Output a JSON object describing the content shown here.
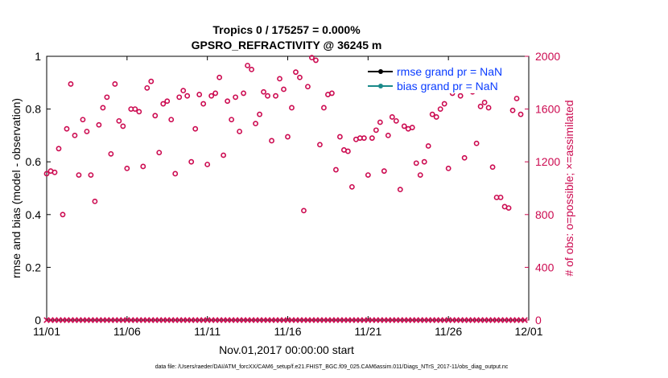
{
  "chart_data": {
    "type": "scatter",
    "title": "Tropics 0 / 175257 = 0.000%",
    "subtitle": "GPSRO_REFRACTIVITY @ 36245 m",
    "xlabel": "Nov.01,2017 00:00:00 start",
    "ylabel": "rmse and bias (model - observation)",
    "y2label": "# of obs: o=possible; ×=assimilated",
    "xlim": [
      0,
      30
    ],
    "ylim": [
      0,
      1
    ],
    "y2lim": [
      0,
      2000
    ],
    "x_tick_labels": [
      {
        "x": 0,
        "label": "11/01"
      },
      {
        "x": 5,
        "label": "11/06"
      },
      {
        "x": 10,
        "label": "11/11"
      },
      {
        "x": 15,
        "label": "11/16"
      },
      {
        "x": 20,
        "label": "11/21"
      },
      {
        "x": 25,
        "label": "11/26"
      },
      {
        "x": 30,
        "label": "12/01"
      }
    ],
    "y_ticks": [
      0,
      0.2,
      0.4,
      0.6,
      0.8,
      1
    ],
    "y_tick_labels": [
      "0",
      "0.2",
      "0.4",
      "0.6",
      "0.8",
      "1"
    ],
    "y2_ticks": [
      0,
      400,
      800,
      1200,
      1600,
      2000
    ],
    "y2_tick_labels": [
      "0",
      "400",
      "800",
      "1200",
      "1600",
      "2000"
    ],
    "legend": {
      "placement": "top-right",
      "entries": [
        {
          "label": "rmse grand pr = NaN",
          "color": "#000000"
        },
        {
          "label": "bias grand pr = NaN",
          "color": "#1a8a8a"
        }
      ]
    },
    "series": [
      {
        "name": "possible obs",
        "marker": "circle",
        "color": "#cc0a50",
        "axis": "right",
        "points": [
          [
            0.0,
            1110
          ],
          [
            0.25,
            1130
          ],
          [
            0.5,
            1120
          ],
          [
            0.75,
            1300
          ],
          [
            1.0,
            800
          ],
          [
            1.25,
            1450
          ],
          [
            1.5,
            1790
          ],
          [
            1.75,
            1400
          ],
          [
            2.0,
            1100
          ],
          [
            2.25,
            1520
          ],
          [
            2.5,
            1430
          ],
          [
            2.75,
            1100
          ],
          [
            3.0,
            900
          ],
          [
            3.25,
            1480
          ],
          [
            3.5,
            1610
          ],
          [
            3.75,
            1690
          ],
          [
            4.0,
            1260
          ],
          [
            4.25,
            1790
          ],
          [
            4.5,
            1510
          ],
          [
            4.75,
            1470
          ],
          [
            5.0,
            1150
          ],
          [
            5.25,
            1600
          ],
          [
            5.5,
            1600
          ],
          [
            5.75,
            1580
          ],
          [
            6.0,
            1165
          ],
          [
            6.25,
            1760
          ],
          [
            6.5,
            1810
          ],
          [
            6.75,
            1550
          ],
          [
            7.0,
            1270
          ],
          [
            7.25,
            1640
          ],
          [
            7.5,
            1660
          ],
          [
            7.75,
            1520
          ],
          [
            8.0,
            1110
          ],
          [
            8.25,
            1690
          ],
          [
            8.5,
            1740
          ],
          [
            8.75,
            1700
          ],
          [
            9.0,
            1200
          ],
          [
            9.25,
            1450
          ],
          [
            9.5,
            1710
          ],
          [
            9.75,
            1640
          ],
          [
            10.0,
            1180
          ],
          [
            10.25,
            1700
          ],
          [
            10.5,
            1720
          ],
          [
            10.75,
            1840
          ],
          [
            11.0,
            1250
          ],
          [
            11.25,
            1660
          ],
          [
            11.5,
            1520
          ],
          [
            11.75,
            1690
          ],
          [
            12.0,
            1430
          ],
          [
            12.25,
            1720
          ],
          [
            12.5,
            1930
          ],
          [
            12.75,
            1900
          ],
          [
            13.0,
            1490
          ],
          [
            13.25,
            1560
          ],
          [
            13.5,
            1730
          ],
          [
            13.75,
            1700
          ],
          [
            14.0,
            1360
          ],
          [
            14.25,
            1700
          ],
          [
            14.5,
            1830
          ],
          [
            14.75,
            1750
          ],
          [
            15.0,
            1390
          ],
          [
            15.25,
            1610
          ],
          [
            15.5,
            1880
          ],
          [
            15.75,
            1840
          ],
          [
            16.0,
            830
          ],
          [
            16.25,
            1770
          ],
          [
            16.5,
            1990
          ],
          [
            16.75,
            1970
          ],
          [
            17.0,
            1330
          ],
          [
            17.25,
            1610
          ],
          [
            17.5,
            1710
          ],
          [
            17.75,
            1720
          ],
          [
            18.0,
            1140
          ],
          [
            18.25,
            1390
          ],
          [
            18.5,
            1290
          ],
          [
            18.75,
            1280
          ],
          [
            19.0,
            1010
          ],
          [
            19.25,
            1370
          ],
          [
            19.5,
            1380
          ],
          [
            19.75,
            1380
          ],
          [
            20.0,
            1100
          ],
          [
            20.25,
            1380
          ],
          [
            20.5,
            1440
          ],
          [
            20.75,
            1500
          ],
          [
            21.0,
            1130
          ],
          [
            21.25,
            1400
          ],
          [
            21.5,
            1540
          ],
          [
            21.75,
            1510
          ],
          [
            22.0,
            990
          ],
          [
            22.25,
            1470
          ],
          [
            22.5,
            1450
          ],
          [
            22.75,
            1460
          ],
          [
            23.0,
            1190
          ],
          [
            23.25,
            1100
          ],
          [
            23.5,
            1200
          ],
          [
            23.75,
            1320
          ],
          [
            24.0,
            1560
          ],
          [
            24.25,
            1540
          ],
          [
            24.5,
            1600
          ],
          [
            24.75,
            1640
          ],
          [
            25.0,
            1150
          ],
          [
            25.25,
            1720
          ],
          [
            25.5,
            1810
          ],
          [
            25.75,
            1700
          ],
          [
            26.0,
            1230
          ],
          [
            26.25,
            1810
          ],
          [
            26.5,
            1730
          ],
          [
            26.75,
            1340
          ],
          [
            27.0,
            1620
          ],
          [
            27.25,
            1650
          ],
          [
            27.5,
            1610
          ],
          [
            27.75,
            1160
          ],
          [
            28.0,
            930
          ],
          [
            28.25,
            930
          ],
          [
            28.5,
            860
          ],
          [
            28.75,
            850
          ],
          [
            29.0,
            1590
          ],
          [
            29.25,
            1680
          ],
          [
            29.5,
            1560
          ]
        ]
      },
      {
        "name": "assimilated obs",
        "marker": "cross",
        "color": "#cc0a50",
        "axis": "right",
        "x_start": 0,
        "x_end": 29.75,
        "x_step": 0.25,
        "value": 0
      }
    ]
  },
  "footer": {
    "text": "data file: /Users/raeder/DAI/ATM_forcXX/CAM6_setup/f.e21.FHIST_BGC.f09_025.CAM6assim.011/Diags_NTrS_2017-11/obs_diag_output.nc"
  }
}
